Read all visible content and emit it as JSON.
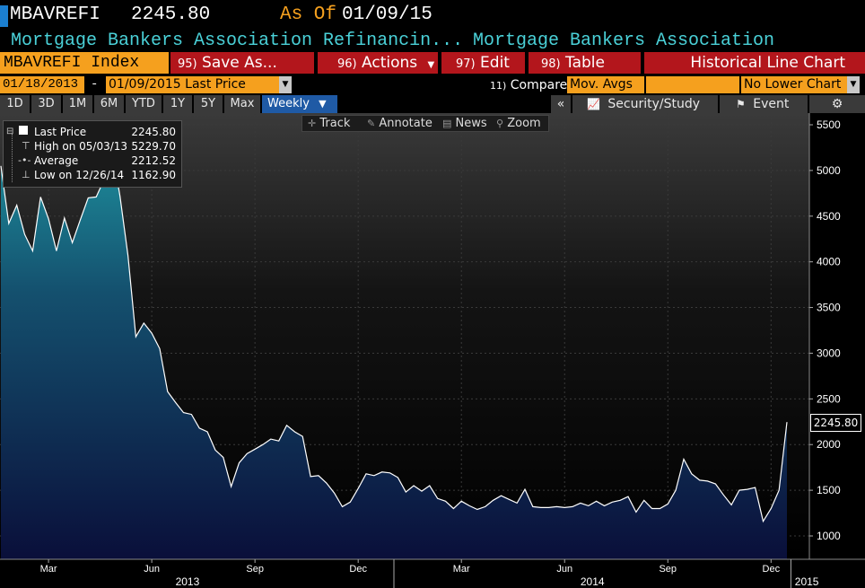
{
  "header": {
    "ticker": "MBAVREFI",
    "price": "2245.80",
    "as_of_label": "As Of",
    "as_of_date": "01/09/15",
    "description_left": "Mortgage Bankers Association Refinancin...",
    "description_right": "Mortgage Bankers Association"
  },
  "menu": {
    "index_label": "MBAVREFI Index",
    "save_num": "95)",
    "save_label": "Save As...",
    "actions_num": "96)",
    "actions_label": "Actions",
    "edit_num": "97)",
    "edit_label": "Edit",
    "table_num": "98)",
    "table_label": "Table",
    "chart_title": "Historical Line Chart"
  },
  "daterow": {
    "start_date": "01/18/2013",
    "dash": "-",
    "end_date": "01/09/2015 Last Price",
    "compare_num": "11)",
    "compare_label": "Compare",
    "mov_avgs": "Mov. Avgs",
    "lower_chart": "No Lower Chart"
  },
  "periods": {
    "items": [
      "1D",
      "3D",
      "1M",
      "6M",
      "YTD",
      "1Y",
      "5Y",
      "Max"
    ],
    "frequency": "Weekly",
    "collapse": "«",
    "security_study": "Security/Study",
    "event": "Event"
  },
  "tools": {
    "track": "Track",
    "annotate": "Annotate",
    "news": "News",
    "zoom": "Zoom"
  },
  "legend": {
    "last_label": "Last Price",
    "last_value": "2245.80",
    "high_label": "High on 05/03/13",
    "high_value": "5229.70",
    "avg_label": "Average",
    "avg_value": "2212.52",
    "low_label": "Low on 12/26/14",
    "low_value": "1162.90"
  },
  "colors": {
    "orange": "#f5a01e",
    "red": "#b3161c",
    "cyan_text": "#4ad1d8",
    "line": "#ffffff",
    "fill_top": "#1e8e9c",
    "fill_bottom": "#0a0f3a"
  },
  "chart_data": {
    "type": "area",
    "series_name": "Last Price",
    "ylim": [
      800,
      5650
    ],
    "y_ticks": [
      "5500",
      "5000",
      "4500",
      "4000",
      "3500",
      "3000",
      "2500",
      "2000",
      "1500",
      "1000"
    ],
    "y_tick_values": [
      5500,
      5000,
      4500,
      4000,
      3500,
      3000,
      2500,
      2000,
      1500,
      1000
    ],
    "month_labels": [
      "Mar",
      "Jun",
      "Sep",
      "Dec",
      "Mar",
      "Jun",
      "Sep",
      "Dec"
    ],
    "month_label_weeks": [
      6,
      19,
      32,
      45,
      58,
      71,
      84,
      97
    ],
    "year_labels": [
      "2013",
      "2014",
      "2015"
    ],
    "year_label_weeks": [
      23.5,
      74.5,
      101.5
    ],
    "year_divider_weeks": [
      -2,
      49.5,
      99.5
    ],
    "last_value_tag": "2245.80",
    "values": [
      5050,
      4420,
      4620,
      4300,
      4120,
      4710,
      4470,
      4120,
      4480,
      4210,
      4460,
      4700,
      4710,
      4900,
      5230,
      4720,
      4070,
      3180,
      3330,
      3220,
      3050,
      2580,
      2460,
      2350,
      2330,
      2180,
      2140,
      1940,
      1860,
      1540,
      1800,
      1900,
      1950,
      2000,
      2060,
      2040,
      2210,
      2140,
      2090,
      1650,
      1660,
      1580,
      1470,
      1320,
      1370,
      1520,
      1680,
      1660,
      1700,
      1690,
      1640,
      1480,
      1550,
      1490,
      1550,
      1410,
      1380,
      1300,
      1380,
      1330,
      1290,
      1320,
      1390,
      1440,
      1400,
      1360,
      1510,
      1320,
      1310,
      1310,
      1320,
      1310,
      1320,
      1360,
      1330,
      1380,
      1330,
      1370,
      1390,
      1430,
      1260,
      1390,
      1300,
      1300,
      1350,
      1500,
      1840,
      1680,
      1610,
      1600,
      1570,
      1450,
      1340,
      1500,
      1510,
      1530,
      1160,
      1300,
      1500,
      2245.8
    ]
  }
}
